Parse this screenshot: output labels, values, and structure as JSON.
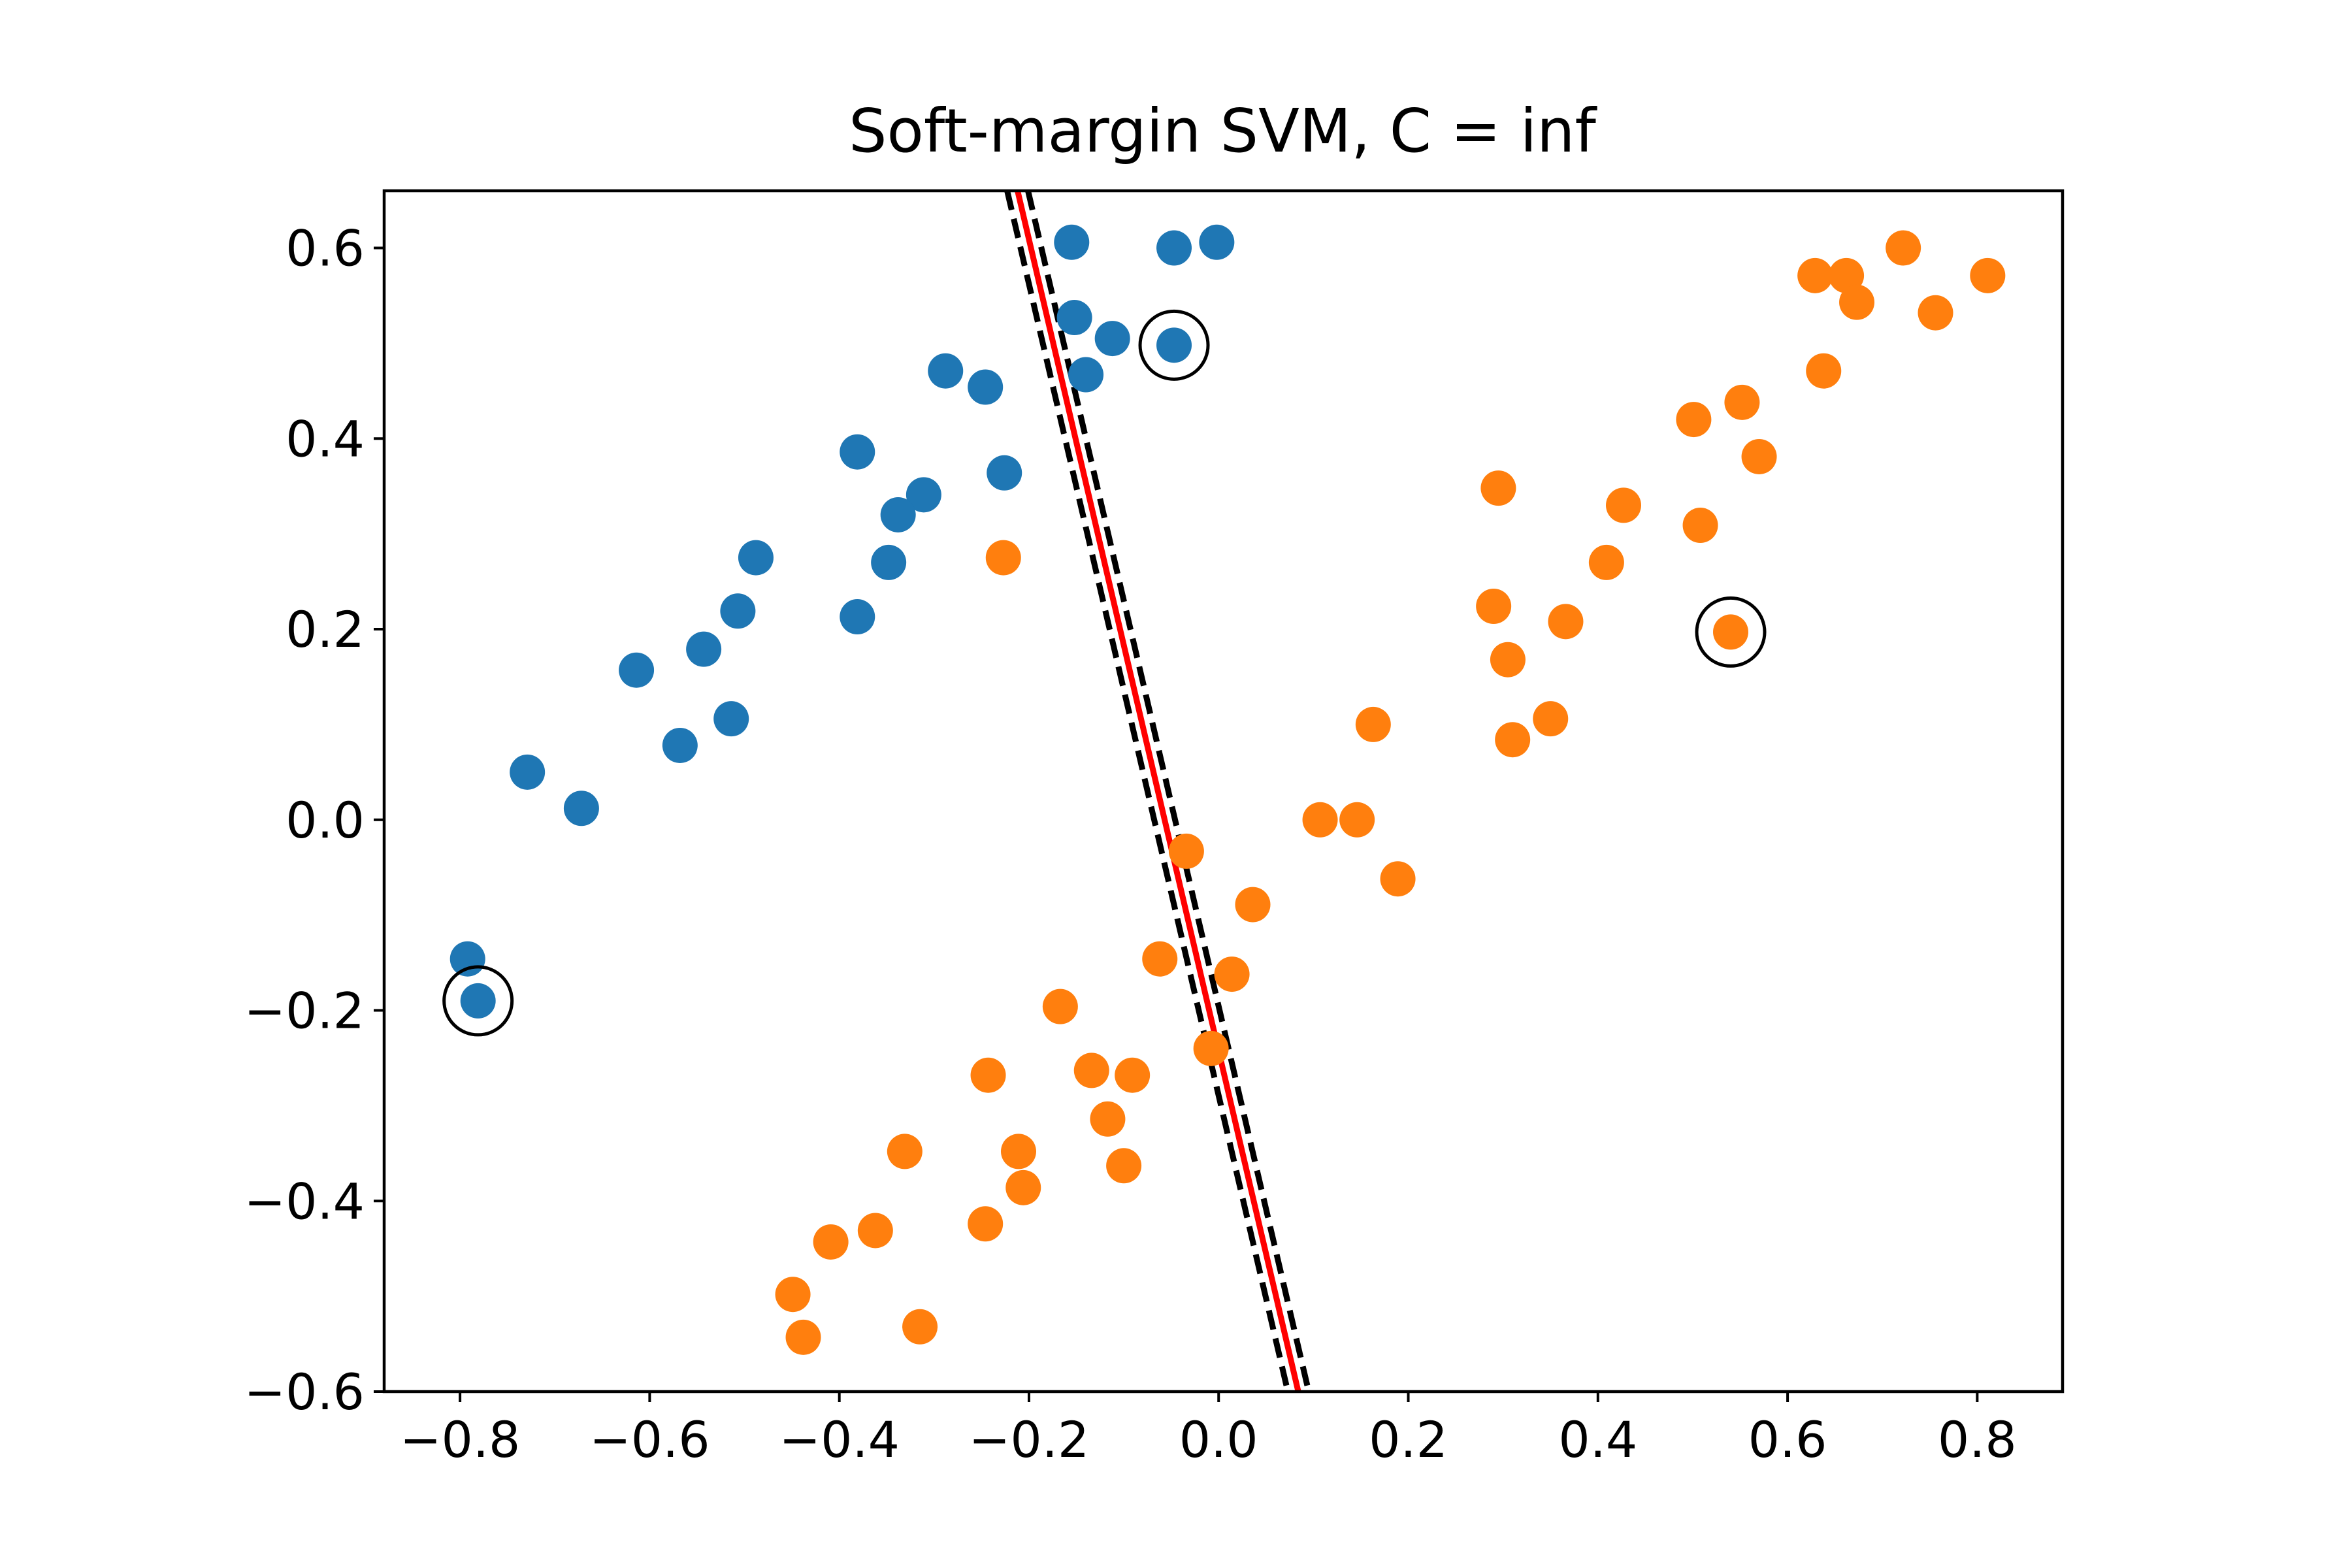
{
  "chart_data": {
    "type": "scatter",
    "title": "Soft-margin SVM, C = inf",
    "xlabel": "",
    "ylabel": "",
    "xlim": [
      -0.88,
      0.89
    ],
    "ylim": [
      -0.6,
      0.66
    ],
    "x_ticks": [
      -0.8,
      -0.6,
      -0.4,
      -0.2,
      0.0,
      0.2,
      0.4,
      0.6,
      0.8
    ],
    "x_tick_labels": [
      "−0.8",
      "−0.6",
      "−0.4",
      "−0.2",
      "0.0",
      "0.2",
      "0.4",
      "0.6",
      "0.8"
    ],
    "y_ticks": [
      0.6,
      0.4,
      0.2,
      0.0,
      -0.2,
      -0.4,
      -0.6
    ],
    "y_tick_labels": [
      "0.6",
      "0.4",
      "0.2",
      "0.0",
      "−0.2",
      "−0.4",
      "−0.6"
    ],
    "grid": false,
    "series": [
      {
        "color": "#1f77b4",
        "points": [
          [
            -0.155,
            0.606
          ],
          [
            -0.047,
            0.6
          ],
          [
            -0.002,
            0.606
          ],
          [
            -0.152,
            0.527
          ],
          [
            -0.112,
            0.505
          ],
          [
            -0.047,
            0.498
          ],
          [
            -0.288,
            0.471
          ],
          [
            -0.246,
            0.454
          ],
          [
            -0.14,
            0.467
          ],
          [
            -0.381,
            0.386
          ],
          [
            -0.226,
            0.364
          ],
          [
            -0.311,
            0.341
          ],
          [
            -0.338,
            0.32
          ],
          [
            -0.488,
            0.275
          ],
          [
            -0.348,
            0.27
          ],
          [
            -0.507,
            0.219
          ],
          [
            -0.381,
            0.213
          ],
          [
            -0.543,
            0.179
          ],
          [
            -0.614,
            0.157
          ],
          [
            -0.514,
            0.106
          ],
          [
            -0.568,
            0.078
          ],
          [
            -0.729,
            0.05
          ],
          [
            -0.672,
            0.012
          ],
          [
            -0.792,
            -0.146
          ],
          [
            -0.781,
            -0.19
          ]
        ]
      },
      {
        "color": "#ff7f0e",
        "points": [
          [
            0.722,
            0.6
          ],
          [
            0.629,
            0.571
          ],
          [
            0.662,
            0.571
          ],
          [
            0.811,
            0.571
          ],
          [
            0.673,
            0.543
          ],
          [
            0.756,
            0.532
          ],
          [
            0.638,
            0.471
          ],
          [
            0.552,
            0.438
          ],
          [
            0.501,
            0.42
          ],
          [
            0.57,
            0.381
          ],
          [
            0.295,
            0.348
          ],
          [
            0.427,
            0.33
          ],
          [
            0.508,
            0.309
          ],
          [
            0.409,
            0.27
          ],
          [
            -0.227,
            0.275
          ],
          [
            0.29,
            0.224
          ],
          [
            0.366,
            0.208
          ],
          [
            0.54,
            0.197
          ],
          [
            0.305,
            0.168
          ],
          [
            0.35,
            0.106
          ],
          [
            0.163,
            0.1
          ],
          [
            0.31,
            0.084
          ],
          [
            0.107,
            0.0
          ],
          [
            0.146,
            0.0
          ],
          [
            0.189,
            -0.062
          ],
          [
            -0.034,
            -0.033
          ],
          [
            0.036,
            -0.089
          ],
          [
            -0.062,
            -0.146
          ],
          [
            0.014,
            -0.162
          ],
          [
            -0.167,
            -0.196
          ],
          [
            -0.008,
            -0.24
          ],
          [
            -0.243,
            -0.268
          ],
          [
            -0.134,
            -0.263
          ],
          [
            -0.091,
            -0.268
          ],
          [
            -0.117,
            -0.314
          ],
          [
            -0.211,
            -0.348
          ],
          [
            -0.331,
            -0.348
          ],
          [
            -0.1,
            -0.363
          ],
          [
            -0.206,
            -0.386
          ],
          [
            -0.246,
            -0.424
          ],
          [
            -0.362,
            -0.431
          ],
          [
            -0.409,
            -0.443
          ],
          [
            -0.449,
            -0.498
          ],
          [
            -0.438,
            -0.543
          ],
          [
            -0.315,
            -0.532
          ]
        ]
      }
    ],
    "support_vectors": [
      [
        -0.047,
        0.498
      ],
      [
        0.54,
        0.197
      ],
      [
        -0.781,
        -0.19
      ]
    ],
    "decision_boundary": {
      "color": "#ff0000",
      "points": [
        [
          -0.212,
          0.66
        ],
        [
          0.084,
          -0.6
        ]
      ]
    },
    "margins": {
      "color": "#000000",
      "style": "dashed",
      "offset_x": 0.011
    }
  }
}
